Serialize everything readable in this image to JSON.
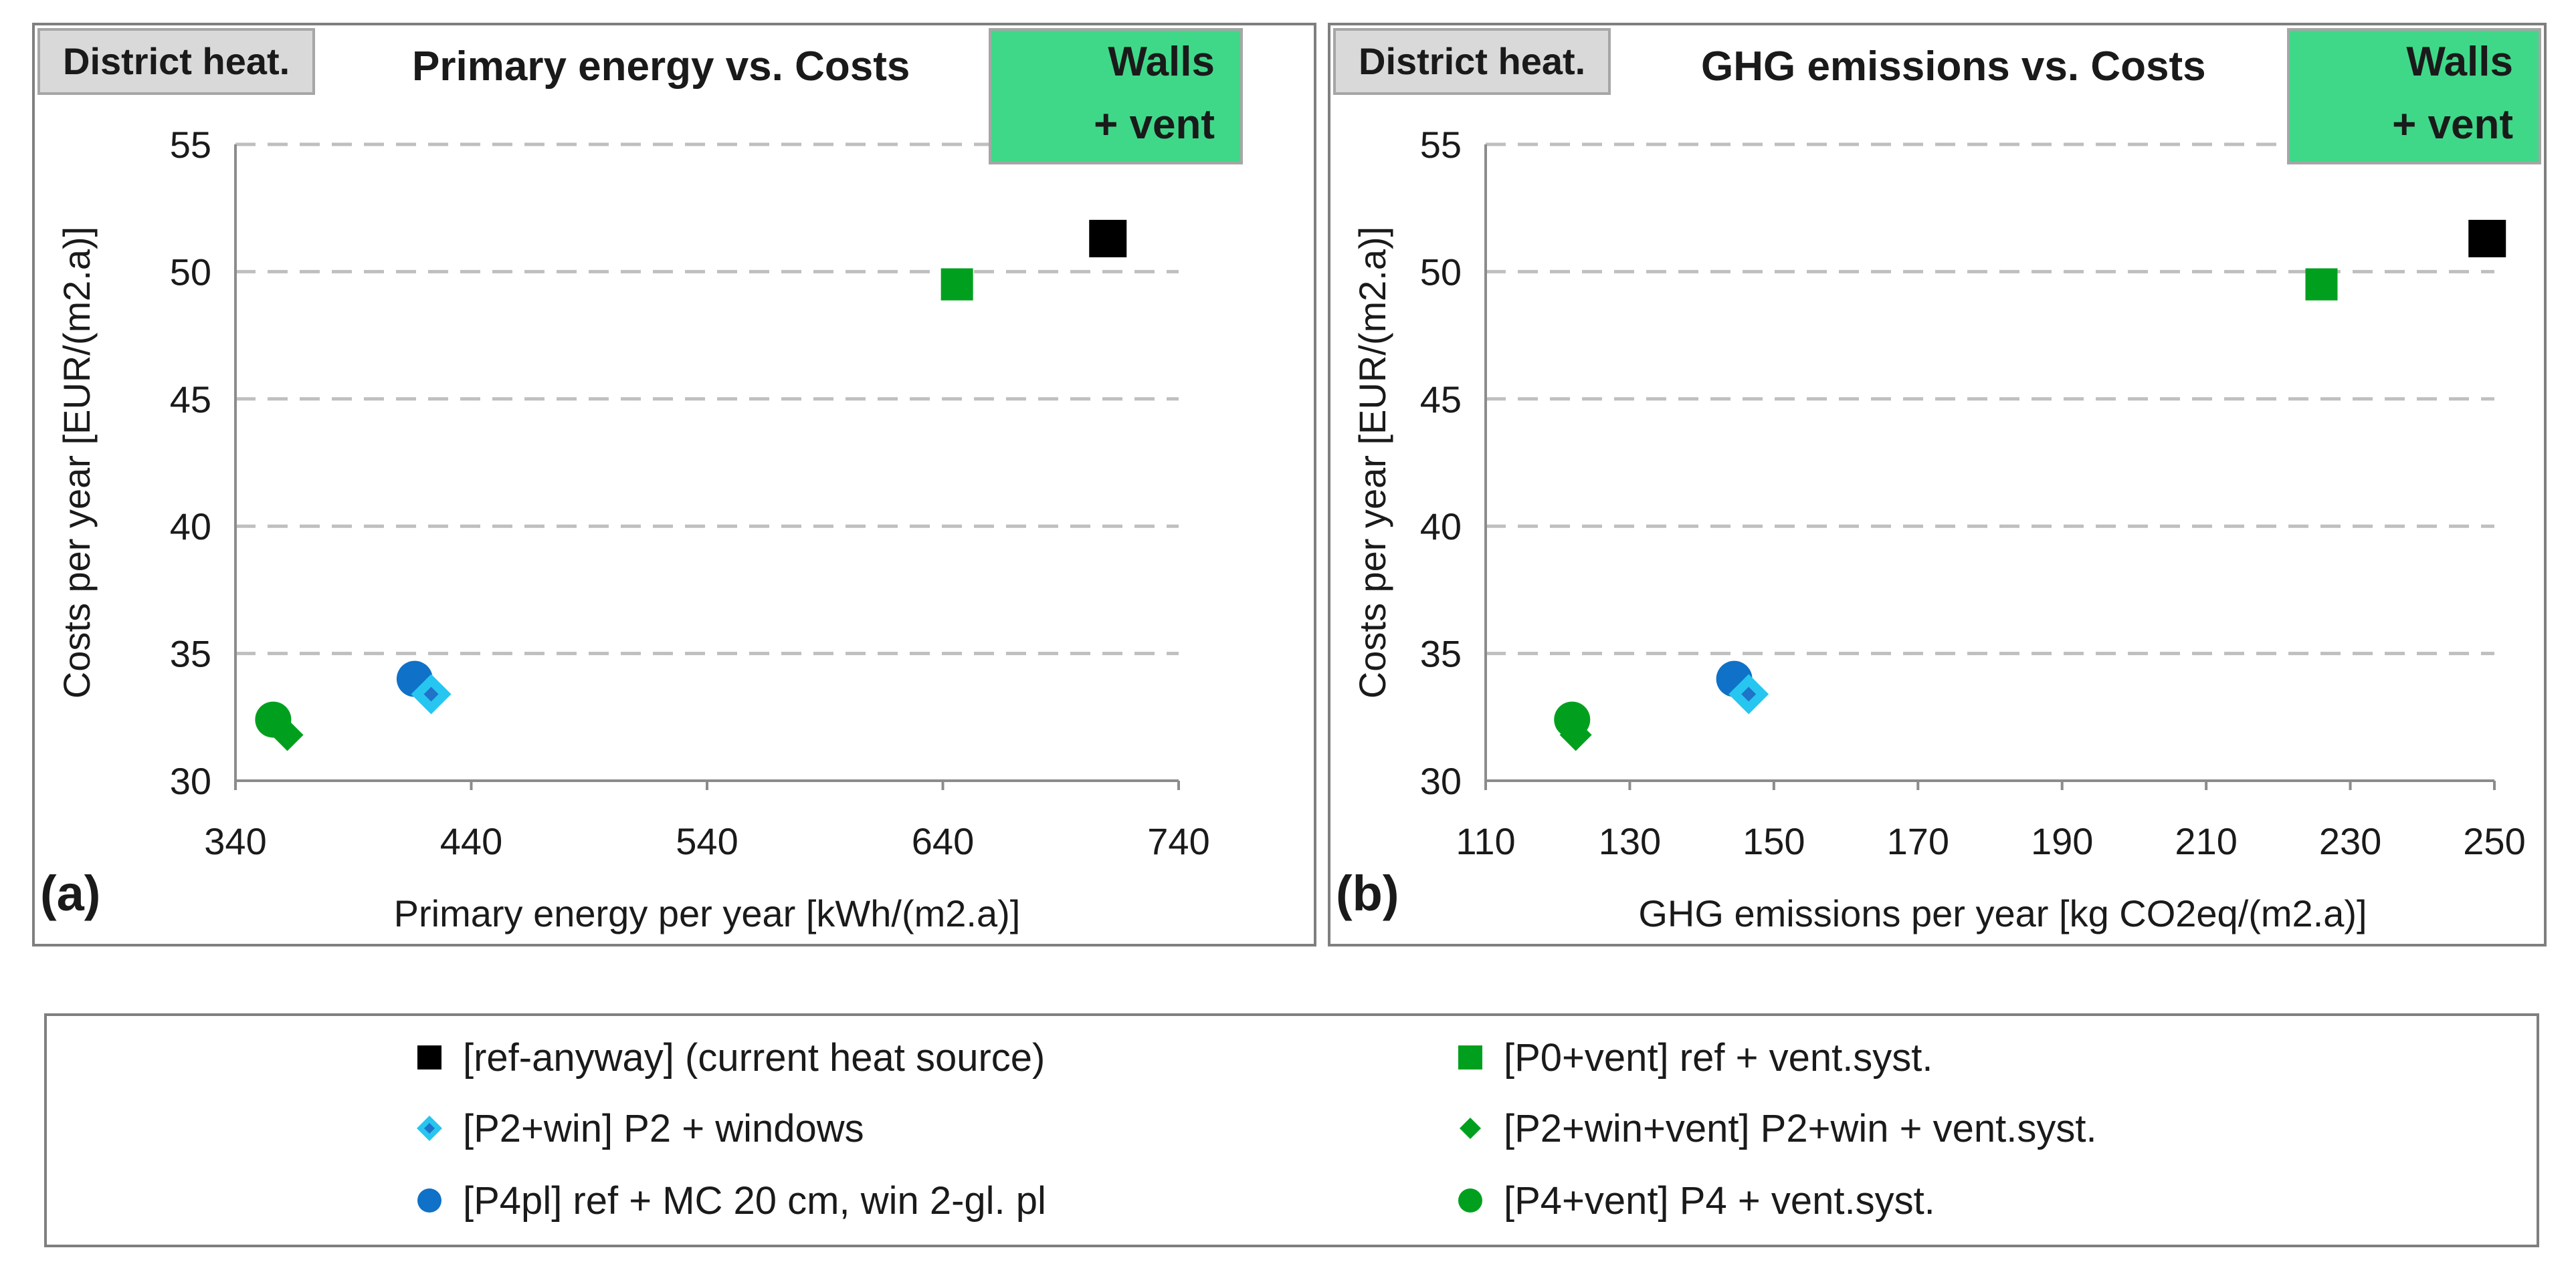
{
  "colors": {
    "ref_anyway": "#000000",
    "p0_vent": "#00a01e",
    "p2_win": "#26c6f0",
    "p2_win_inner": "#1f73c8",
    "p2_win_vent": "#00a01e",
    "p4pl": "#0f71c7",
    "p4_vent": "#00a01e",
    "grid": "#bfbfbf",
    "walls_vent_bg": "#3fd889"
  },
  "panels": {
    "a": {
      "tag": "District heat.",
      "title": "Primary energy vs. Costs",
      "badge_line1": "Walls",
      "badge_line2": "+ vent",
      "letter": "(a)"
    },
    "b": {
      "tag": "District heat.",
      "title": "GHG emissions vs. Costs",
      "badge_line1": "Walls",
      "badge_line2": "+ vent",
      "letter": "(b)"
    }
  },
  "legend": {
    "ref_anyway": "[ref-anyway] (current heat source)",
    "p0_vent": "[P0+vent] ref + vent.syst.",
    "p2_win": "[P2+win] P2 + windows",
    "p2_win_vent": "[P2+win+vent] P2+win + vent.syst.",
    "p4pl": "[P4pl] ref + MC 20 cm, win 2-gl. pl",
    "p4_vent": "[P4+vent] P4 + vent.syst."
  },
  "chart_data": [
    {
      "type": "scatter",
      "title": "Primary energy vs. Costs",
      "xlabel": "Primary energy per year  [kWh/(m2.a)]",
      "ylabel": "Costs per year  [EUR/(m2.a)]",
      "xlim": [
        340,
        740
      ],
      "ylim": [
        30,
        55
      ],
      "xticks": [
        340,
        440,
        540,
        640,
        740
      ],
      "yticks": [
        30,
        35,
        40,
        45,
        50,
        55
      ],
      "grid": "horizontal dashed",
      "series": [
        {
          "name": "[ref-anyway] (current heat source)",
          "key": "ref_anyway",
          "marker": "square",
          "x": 710,
          "y": 51.3
        },
        {
          "name": "[P0+vent] ref + vent.syst.",
          "key": "p0_vent",
          "marker": "square",
          "x": 646,
          "y": 49.5
        },
        {
          "name": "[P4pl] ref + MC 20 cm, win 2-gl. pl",
          "key": "p4pl",
          "marker": "circle",
          "x": 416,
          "y": 34.0
        },
        {
          "name": "[P2+win] P2 + windows",
          "key": "p2_win",
          "marker": "diamond-outline",
          "x": 423,
          "y": 33.4
        },
        {
          "name": "[P4+vent] P4 + vent.syst.",
          "key": "p4_vent",
          "marker": "circle",
          "x": 356,
          "y": 32.4
        },
        {
          "name": "[P2+win+vent] P2+win + vent.syst.",
          "key": "p2_win_vent",
          "marker": "diamond",
          "x": 362,
          "y": 31.8
        }
      ]
    },
    {
      "type": "scatter",
      "title": "GHG emissions vs. Costs",
      "xlabel": "GHG emissions per year  [kg CO2eq/(m2.a)]",
      "ylabel": "Costs per year  [EUR/(m2.a)]",
      "xlim": [
        110,
        250
      ],
      "ylim": [
        30,
        55
      ],
      "xticks": [
        110,
        130,
        150,
        170,
        190,
        210,
        230,
        250
      ],
      "yticks": [
        30,
        35,
        40,
        45,
        50,
        55
      ],
      "grid": "horizontal dashed",
      "series": [
        {
          "name": "[ref-anyway] (current heat source)",
          "key": "ref_anyway",
          "marker": "square",
          "x": 249,
          "y": 51.3
        },
        {
          "name": "[P0+vent] ref + vent.syst.",
          "key": "p0_vent",
          "marker": "square",
          "x": 226,
          "y": 49.5
        },
        {
          "name": "[P4pl] ref + MC 20 cm, win 2-gl. pl",
          "key": "p4pl",
          "marker": "circle",
          "x": 144.5,
          "y": 34.0
        },
        {
          "name": "[P2+win] P2 + windows",
          "key": "p2_win",
          "marker": "diamond-outline",
          "x": 146.5,
          "y": 33.4
        },
        {
          "name": "[P4+vent] P4 + vent.syst.",
          "key": "p4_vent",
          "marker": "circle",
          "x": 122,
          "y": 32.4
        },
        {
          "name": "[P2+win+vent] P2+win + vent.syst.",
          "key": "p2_win_vent",
          "marker": "diamond",
          "x": 122.5,
          "y": 31.8
        }
      ]
    }
  ]
}
